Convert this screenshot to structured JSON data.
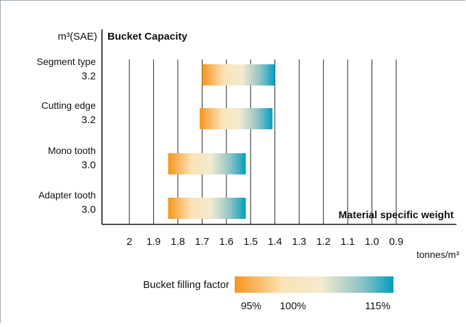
{
  "chart_data": {
    "type": "bar",
    "title": "Bucket Capacity",
    "ylabel": "m³(SAE)",
    "xlabel": "Material specific weight",
    "x_unit": "tonnes/m³",
    "x_ticks": [
      "2",
      "1.9",
      "1.8",
      "1.7",
      "1.6",
      "1.5",
      "1.4",
      "1.3",
      "1.2",
      "1.1",
      "1.0",
      "0.9"
    ],
    "x_tick_values": [
      2.0,
      1.9,
      1.8,
      1.7,
      1.6,
      1.5,
      1.4,
      1.3,
      1.2,
      1.1,
      1.0,
      0.9
    ],
    "xlim": [
      2.0,
      0.9
    ],
    "x_reversed": true,
    "grid": "vertical",
    "categories": [
      {
        "name": "Segment type",
        "capacity": "3.2",
        "range": [
          1.7,
          1.4
        ]
      },
      {
        "name": "Cutting edge",
        "capacity": "3.2",
        "range": [
          1.71,
          1.41
        ]
      },
      {
        "name": "Mono tooth",
        "capacity": "3.0",
        "range": [
          1.84,
          1.52
        ]
      },
      {
        "name": "Adapter tooth",
        "capacity": "3.0",
        "range": [
          1.84,
          1.52
        ]
      }
    ],
    "legend": {
      "title": "Bucket filling factor",
      "labels": [
        "95%",
        "100%",
        "115%"
      ],
      "colors": [
        "#f7941d",
        "#fbe3b5",
        "#009fc0"
      ]
    }
  }
}
